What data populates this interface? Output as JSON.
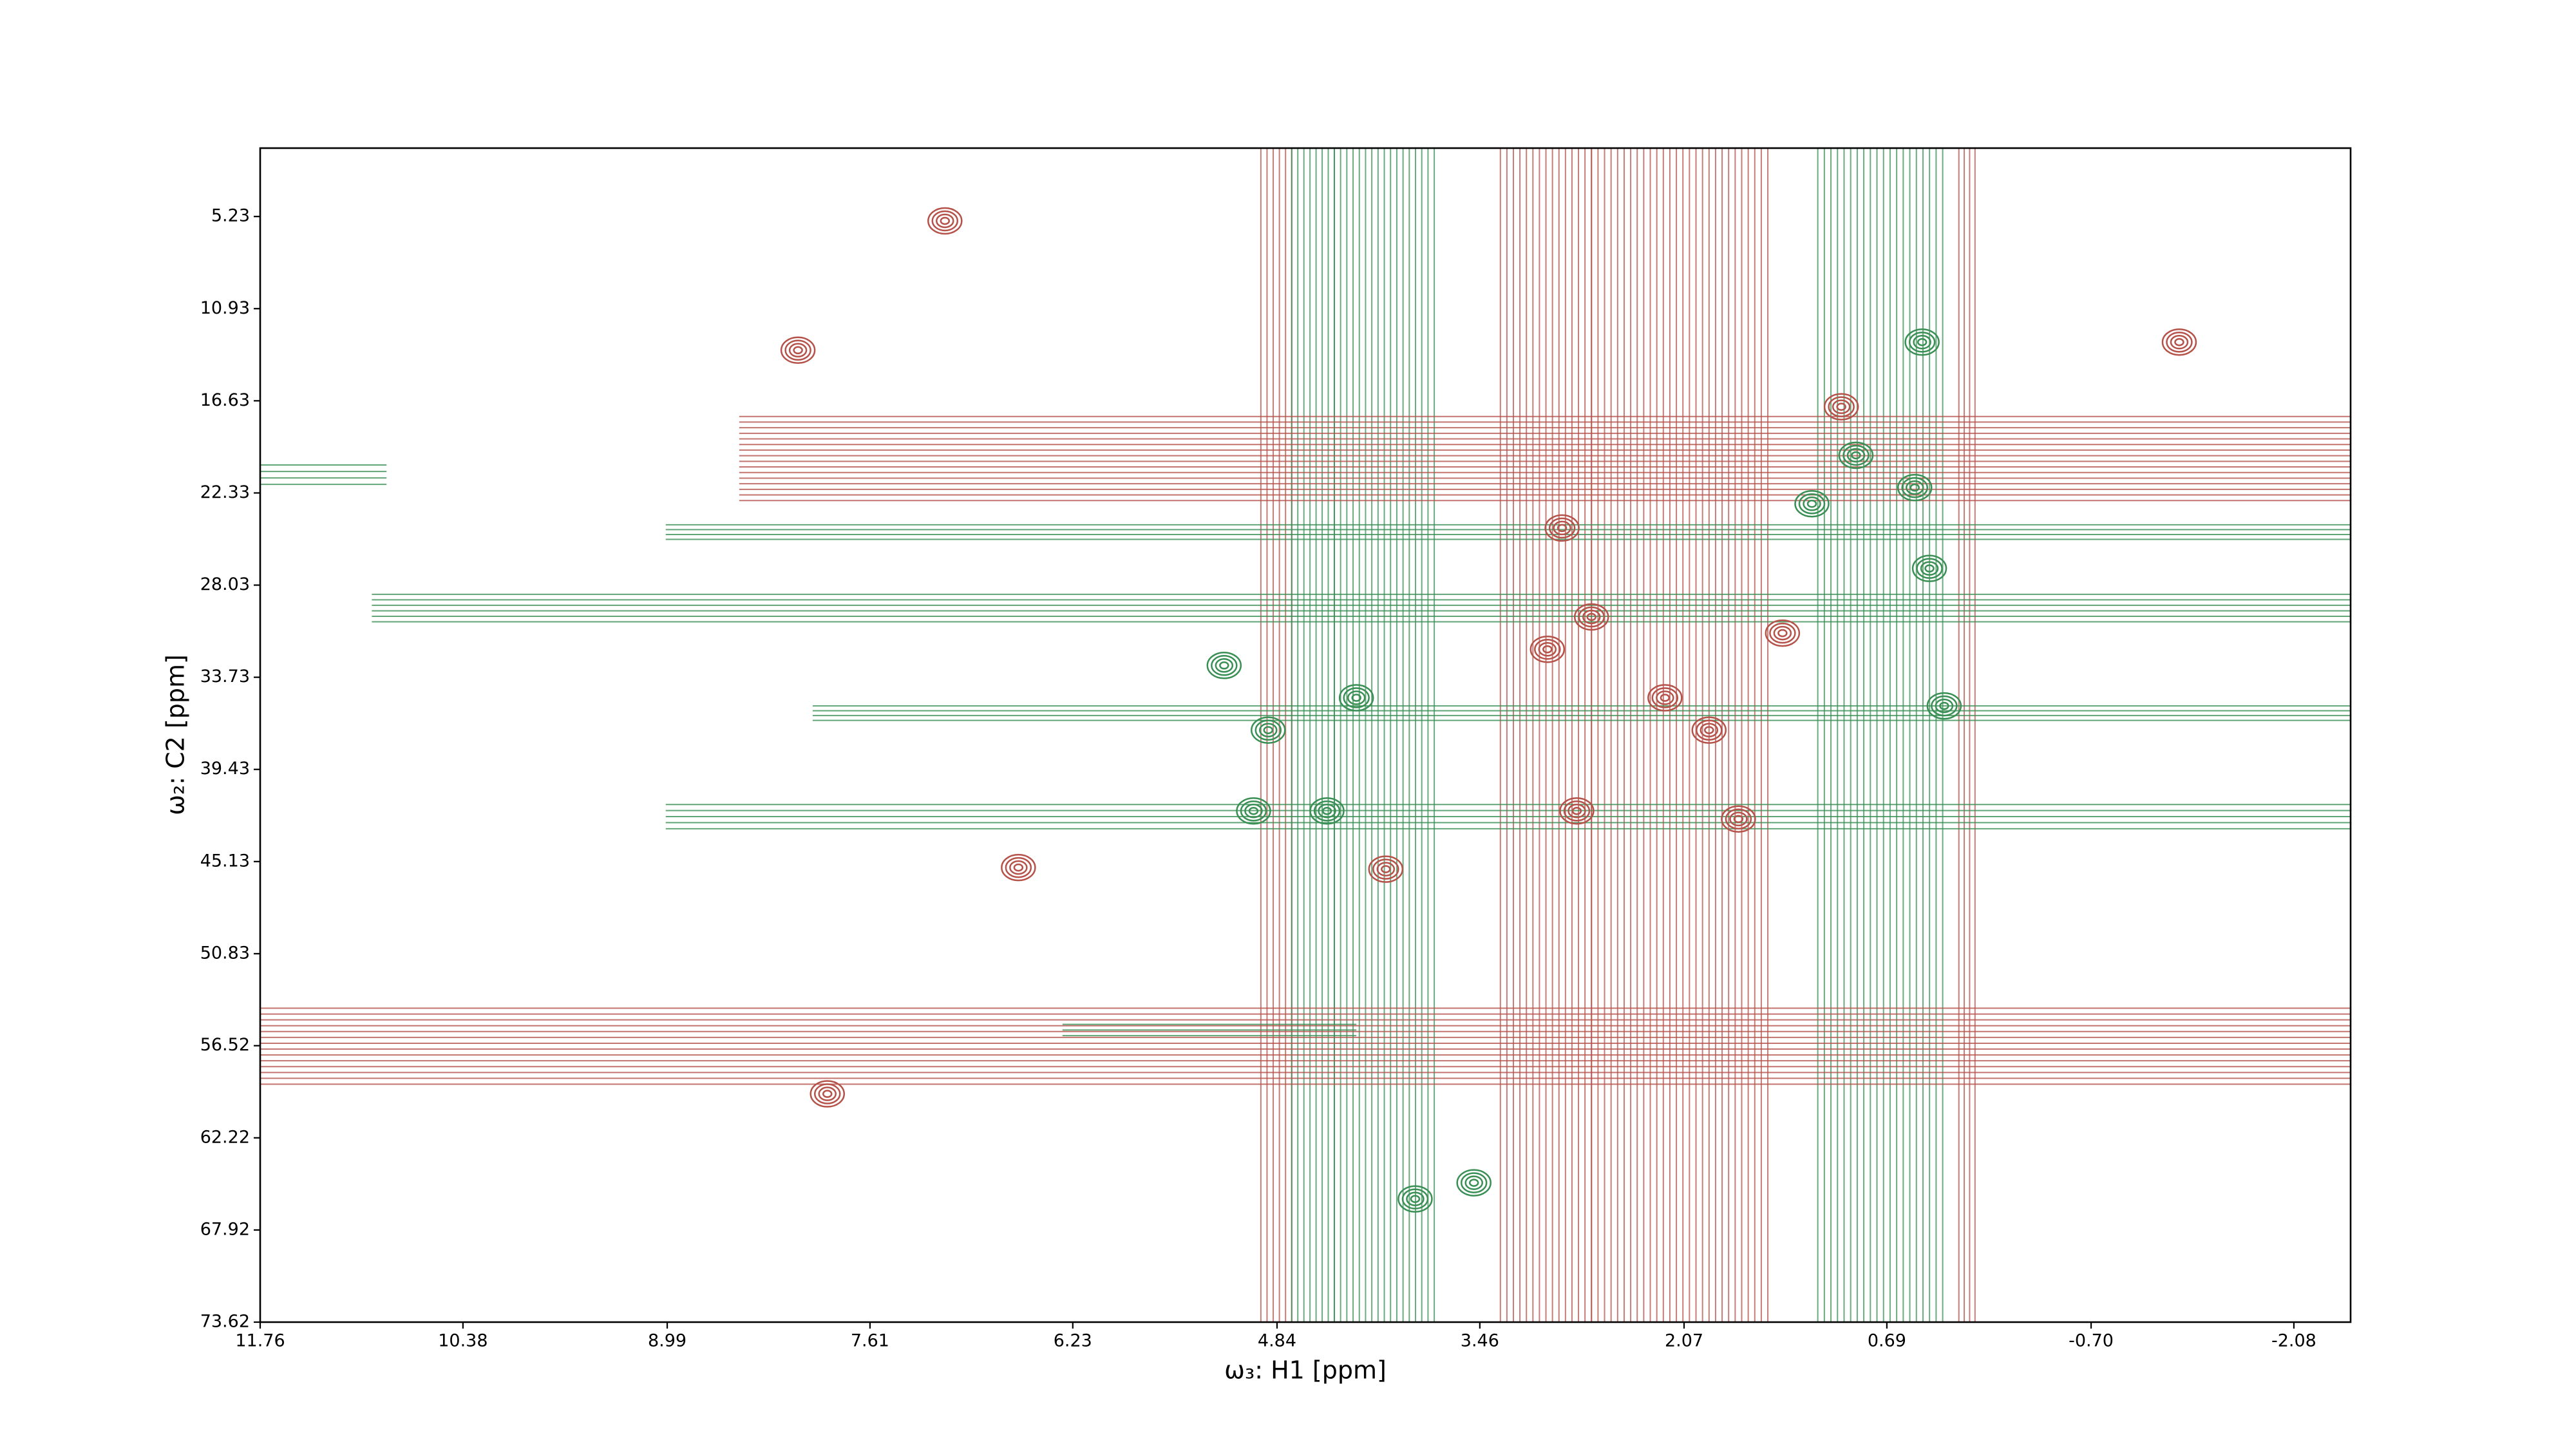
{
  "chart_data": {
    "type": "contour",
    "x_label": "ω₃: H1 [ppm]",
    "y_label": "ω₂: C2 [ppm]",
    "xlim": [
      11.76,
      -2.466
    ],
    "ylim": [
      1.0,
      73.62
    ],
    "xticks": [
      11.76,
      10.38,
      8.99,
      7.61,
      6.23,
      4.84,
      3.46,
      2.07,
      0.69,
      {
        "value": -0.7,
        "label": "-0.70"
      },
      -2.08
    ],
    "yticks": [
      5.23,
      10.93,
      16.63,
      22.33,
      28.03,
      33.73,
      39.43,
      45.13,
      50.83,
      56.52,
      62.22,
      67.92,
      73.62
    ],
    "colors": {
      "positive": "#3a8f55",
      "negative": "#b5524a"
    },
    "vertical_bands": [
      {
        "x": [
          4.95,
          4.74
        ],
        "sign": "negative"
      },
      {
        "x": [
          4.74,
          4.45
        ],
        "sign": "positive"
      },
      {
        "x": [
          4.45,
          3.77
        ],
        "sign": "positive"
      },
      {
        "x": [
          3.32,
          2.7
        ],
        "sign": "negative"
      },
      {
        "x": [
          2.7,
          1.5
        ],
        "sign": "negative"
      },
      {
        "x": [
          1.16,
          0.31
        ],
        "sign": "positive"
      },
      {
        "x": [
          0.2,
          0.09
        ],
        "sign": "negative"
      }
    ],
    "horizontal_bands": [
      {
        "x": [
          8.5,
          -2.466
        ],
        "y": [
          17.6,
          22.8
        ],
        "sign": "negative"
      },
      {
        "x": [
          11.76,
          10.9
        ],
        "y": [
          20.6,
          21.8
        ],
        "sign": "positive"
      },
      {
        "x": [
          9.0,
          -2.466
        ],
        "y": [
          24.3,
          25.2
        ],
        "sign": "positive"
      },
      {
        "x": [
          11.0,
          -2.466
        ],
        "y": [
          28.6,
          30.3
        ],
        "sign": "positive"
      },
      {
        "x": [
          8.0,
          -2.466
        ],
        "y": [
          35.5,
          36.4
        ],
        "sign": "positive"
      },
      {
        "x": [
          9.0,
          -2.466
        ],
        "y": [
          41.6,
          43.1
        ],
        "sign": "positive"
      },
      {
        "x": [
          11.76,
          -2.466
        ],
        "y": [
          54.2,
          58.9
        ],
        "sign": "negative"
      },
      {
        "x": [
          6.3,
          4.3
        ],
        "y": [
          55.2,
          55.9
        ],
        "sign": "positive"
      }
    ],
    "peaks": [
      {
        "x": 2.7,
        "y": 30.0,
        "sign": "negative"
      },
      {
        "x": 3.0,
        "y": 32.0,
        "sign": "negative"
      },
      {
        "x": 2.2,
        "y": 35.0,
        "sign": "negative"
      },
      {
        "x": 1.9,
        "y": 37.0,
        "sign": "negative"
      },
      {
        "x": 2.8,
        "y": 42.0,
        "sign": "negative"
      },
      {
        "x": 1.7,
        "y": 42.5,
        "sign": "negative"
      },
      {
        "x": 4.1,
        "y": 45.6,
        "sign": "negative"
      },
      {
        "x": 2.9,
        "y": 24.5,
        "sign": "negative"
      },
      {
        "x": 1.4,
        "y": 31.0,
        "sign": "negative"
      },
      {
        "x": 4.9,
        "y": 37.0,
        "sign": "positive"
      },
      {
        "x": 0.9,
        "y": 20.0,
        "sign": "positive"
      },
      {
        "x": 0.5,
        "y": 22.0,
        "sign": "positive"
      },
      {
        "x": 0.4,
        "y": 27.0,
        "sign": "positive"
      },
      {
        "x": 1.2,
        "y": 23.0,
        "sign": "positive"
      },
      {
        "x": 3.9,
        "y": 66.0,
        "sign": "positive"
      },
      {
        "x": 3.5,
        "y": 65.0,
        "sign": "positive"
      },
      {
        "x": 7.9,
        "y": 59.5,
        "sign": "negative"
      },
      {
        "x": 7.1,
        "y": 5.5,
        "sign": "negative"
      },
      {
        "x": 8.1,
        "y": 13.5,
        "sign": "negative"
      },
      {
        "x": 6.6,
        "y": 45.5,
        "sign": "negative"
      },
      {
        "x": 5.2,
        "y": 33.0,
        "sign": "positive"
      },
      {
        "x": 5.0,
        "y": 42.0,
        "sign": "positive"
      },
      {
        "x": 0.45,
        "y": 13.0,
        "sign": "positive"
      },
      {
        "x": -1.3,
        "y": 13.0,
        "sign": "negative"
      },
      {
        "x": 4.3,
        "y": 35.0,
        "sign": "positive"
      },
      {
        "x": 4.5,
        "y": 42.0,
        "sign": "positive"
      },
      {
        "x": 0.3,
        "y": 35.5,
        "sign": "positive"
      },
      {
        "x": 1.0,
        "y": 17.0,
        "sign": "negative"
      }
    ]
  }
}
